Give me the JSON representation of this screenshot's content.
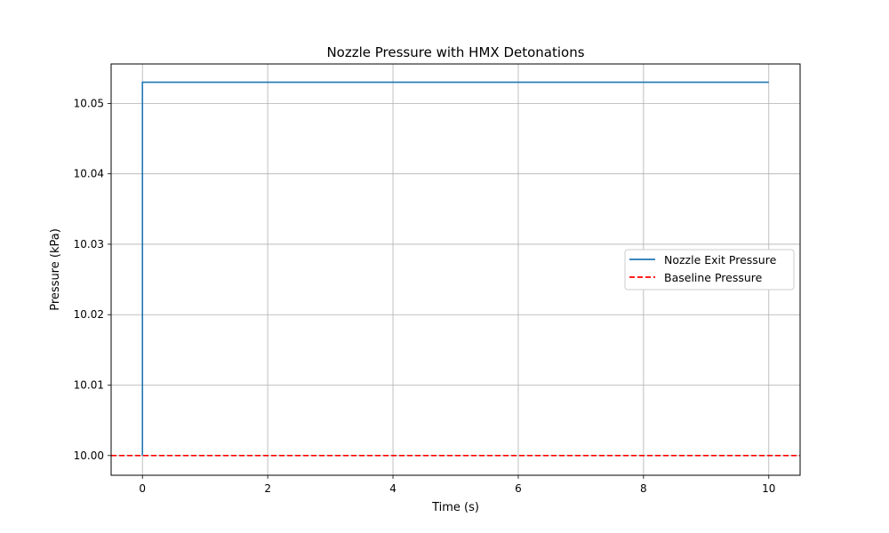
{
  "chart_data": {
    "type": "line",
    "title": "Nozzle Pressure with HMX Detonations",
    "xlabel": "Time (s)",
    "ylabel": "Pressure (kPa)",
    "xlim": [
      -0.5,
      10.5
    ],
    "ylim": [
      9.9972,
      10.0556
    ],
    "xticks": [
      0,
      2,
      4,
      6,
      8,
      10
    ],
    "xtick_labels": [
      "0",
      "2",
      "4",
      "6",
      "8",
      "10"
    ],
    "yticks": [
      10.0,
      10.01,
      10.02,
      10.03,
      10.04,
      10.05
    ],
    "ytick_labels": [
      "10.00",
      "10.01",
      "10.02",
      "10.03",
      "10.04",
      "10.05"
    ],
    "grid": true,
    "legend_position": "center-right",
    "series": [
      {
        "name": "Nozzle Exit Pressure",
        "color": "#1f77b4",
        "style": "solid",
        "x": [
          0,
          0,
          10
        ],
        "y": [
          10.0,
          10.053,
          10.053
        ]
      },
      {
        "name": "Baseline Pressure",
        "color": "#ff0000",
        "style": "dashed",
        "horizontal_line": 10.0
      }
    ]
  }
}
